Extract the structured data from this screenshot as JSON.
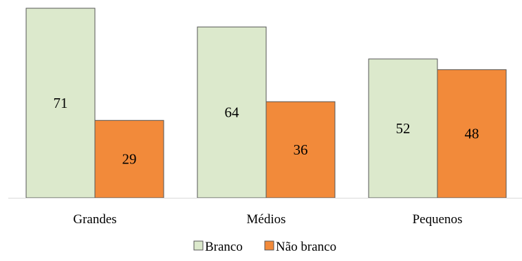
{
  "chart_data": {
    "type": "bar",
    "categories": [
      "Grandes",
      "Médios",
      "Pequenos"
    ],
    "series": [
      {
        "name": "Branco",
        "values": [
          71,
          64,
          52
        ],
        "color": "#dce9cc"
      },
      {
        "name": "Não branco",
        "values": [
          29,
          36,
          48
        ],
        "color": "#f28a3a"
      }
    ],
    "ylim": [
      0,
      71
    ],
    "legend_position": "bottom",
    "grid": false,
    "data_labels": true,
    "bar_stroke_color": "#555555",
    "axis_color": "#d9d9d9"
  }
}
